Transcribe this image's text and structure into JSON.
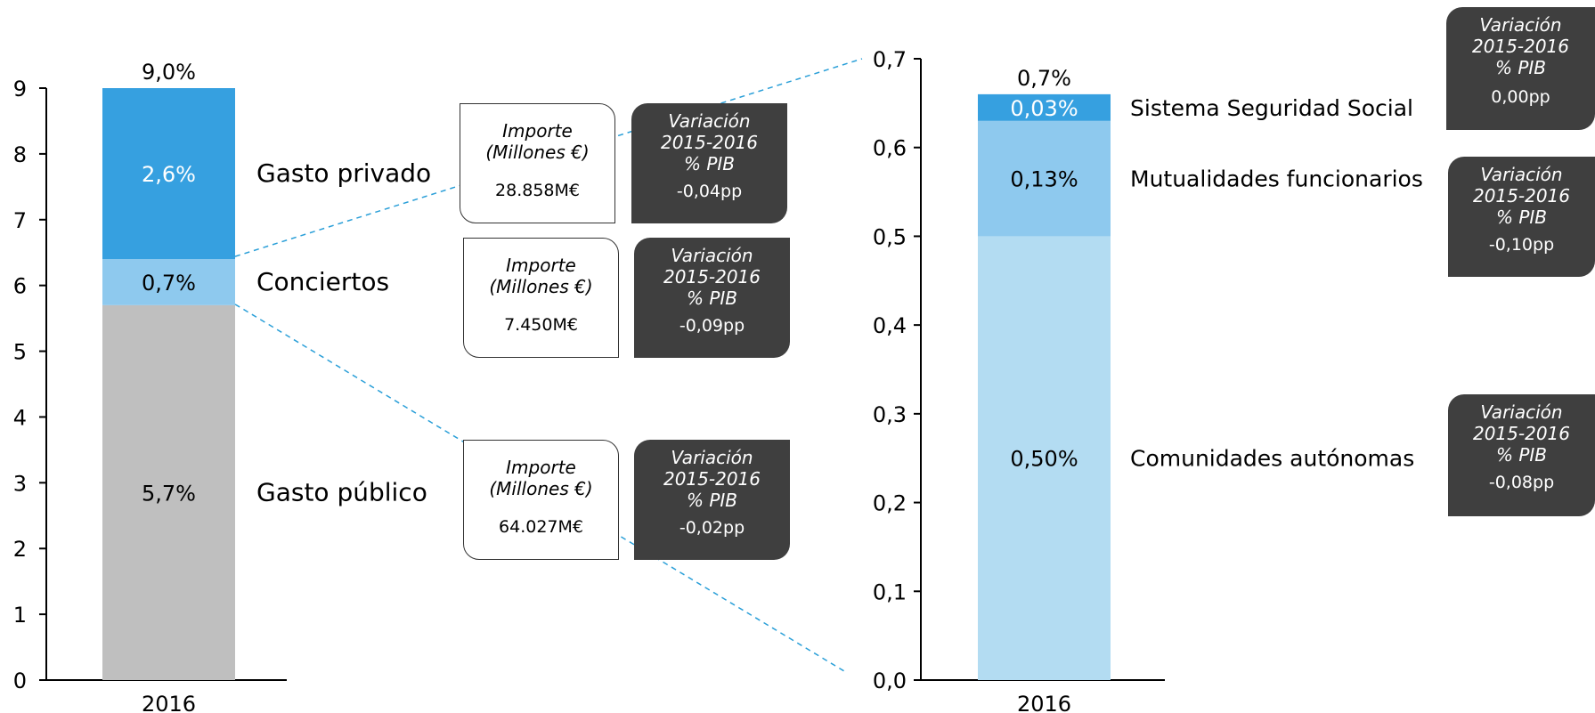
{
  "colors": {
    "axis": "#000000",
    "publico": "#bfbfbf",
    "conciertos": "#8ec9ee",
    "privado": "#36a0e0",
    "ccaa": "#b3dcf2",
    "mutualidades": "#8ec9ee",
    "seguridad_social": "#36a0e0",
    "connector": "#2a9fd8",
    "box_dark": "#3f3f3f"
  },
  "chart_data": [
    {
      "type": "bar",
      "stacked": true,
      "categories": [
        "2016"
      ],
      "ylim": [
        0,
        9
      ],
      "yticks": [
        "0",
        "1",
        "2",
        "3",
        "4",
        "5",
        "6",
        "7",
        "8",
        "9"
      ],
      "total_label": "9,0%",
      "series": [
        {
          "name": "Gasto público",
          "values": [
            5.7
          ],
          "label": "5,7%"
        },
        {
          "name": "Conciertos",
          "values": [
            0.7
          ],
          "label": "0,7%"
        },
        {
          "name": "Gasto privado",
          "values": [
            2.6
          ],
          "label": "2,6%"
        }
      ]
    },
    {
      "type": "bar",
      "stacked": true,
      "categories": [
        "2016"
      ],
      "ylim": [
        0,
        0.7
      ],
      "yticks": [
        "0,0",
        "0,1",
        "0,2",
        "0,3",
        "0,4",
        "0,5",
        "0,6",
        "0,7"
      ],
      "total_label": "0,7%",
      "series": [
        {
          "name": "Comunidades autónomas",
          "values": [
            0.5
          ],
          "label": "0,50%"
        },
        {
          "name": "Mutualidades funcionarios",
          "values": [
            0.13
          ],
          "label": "0,13%"
        },
        {
          "name": "Sistema Seguridad Social",
          "values": [
            0.03
          ],
          "label": "0,03%"
        }
      ]
    }
  ],
  "boxes": {
    "importe_label": [
      "Importe",
      "(Millones €)"
    ],
    "variacion_label": [
      "Variación",
      "2015-2016",
      "% PIB"
    ],
    "privado": {
      "importe": "28.858M€",
      "variacion": "-0,04pp"
    },
    "conciertos": {
      "importe": "7.450M€",
      "variacion": "-0,09pp"
    },
    "publico": {
      "importe": "64.027M€",
      "variacion": "-0,02pp"
    },
    "seguridad_social": {
      "variacion": "0,00pp"
    },
    "mutualidades": {
      "variacion": "-0,10pp"
    },
    "ccaa": {
      "variacion": "-0,08pp"
    }
  }
}
